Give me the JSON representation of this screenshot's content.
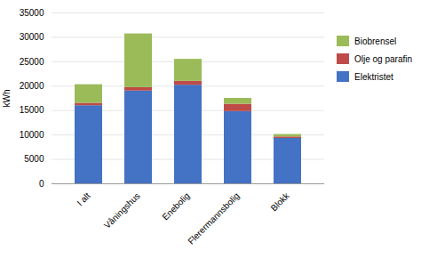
{
  "chart_data": {
    "type": "bar",
    "stacked": true,
    "categories": [
      "I alt",
      "Våningshus",
      "Enebolig",
      "Flerermannsbolig",
      "Blokk"
    ],
    "series": [
      {
        "name": "Elektristet",
        "color": "#4472C4",
        "values": [
          16000,
          19000,
          20200,
          14800,
          9300
        ]
      },
      {
        "name": "Olje og parafin",
        "color": "#BE4B48",
        "values": [
          500,
          700,
          800,
          1500,
          300
        ]
      },
      {
        "name": "Biobrensel",
        "color": "#9BBB59",
        "values": [
          3800,
          11000,
          4500,
          1200,
          500
        ]
      }
    ],
    "ylabel": "kWh",
    "ylim": [
      0,
      35000
    ],
    "yticks": [
      0,
      5000,
      10000,
      15000,
      20000,
      25000,
      30000,
      35000
    ],
    "grid": true,
    "legend": "right"
  }
}
